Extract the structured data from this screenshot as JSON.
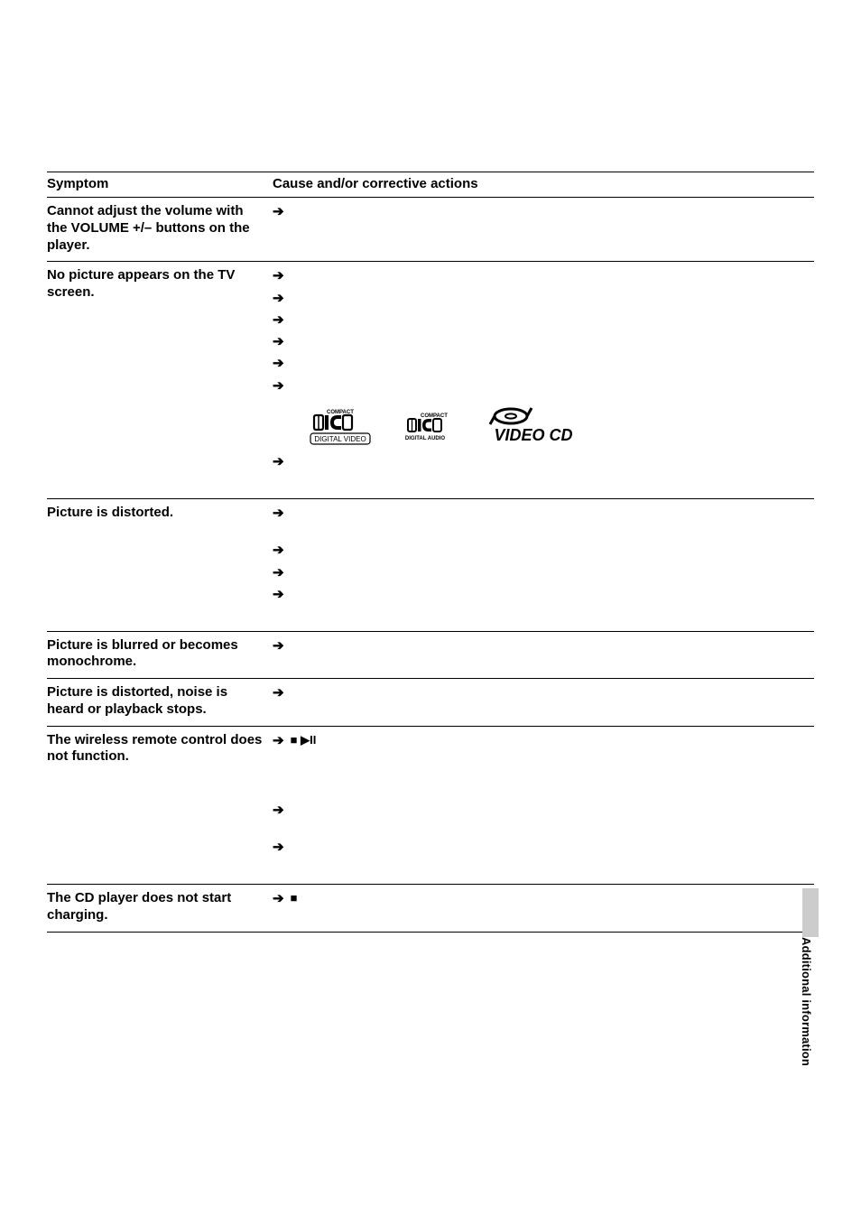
{
  "header": {
    "symptom_label": "Symptom",
    "cause_label": "Cause and/or corrective actions"
  },
  "rows": [
    {
      "symptom": "Cannot adjust the volume with the VOLUME +/– buttons on the player.",
      "actions": [
        ""
      ]
    },
    {
      "symptom": "No picture appears on the TV screen.",
      "actions": [
        "",
        "",
        "",
        "",
        "",
        ""
      ],
      "logos": true,
      "actions_after_logos": [
        " \n "
      ]
    },
    {
      "symptom": "Picture is distorted.",
      "actions": [
        " \n ",
        "",
        "",
        " \n "
      ]
    },
    {
      "symptom": "Picture is blurred or becomes monochrome.",
      "actions": [
        ""
      ]
    },
    {
      "symptom": "Picture is distorted, noise is heard or playback stops.",
      "actions": [
        ""
      ]
    },
    {
      "symptom": "The wireless remote control does not function.",
      "actions": [
        {
          "pre": "",
          "stop_icon": true,
          "mid": "",
          "play_icon": true,
          "post": "\n \n \n "
        },
        " \n ",
        " \n "
      ]
    },
    {
      "symptom": "The CD player does not start charging.",
      "actions": [
        {
          "pre": "",
          "stop_icon": true,
          "post": ""
        }
      ]
    }
  ],
  "side_label": "Additional information",
  "icons": {
    "arrow": "➔",
    "stop": "■",
    "playpause": "▶II"
  },
  "colors": {
    "text": "#000000",
    "bg": "#ffffff",
    "side_bar": "#cccccc"
  }
}
